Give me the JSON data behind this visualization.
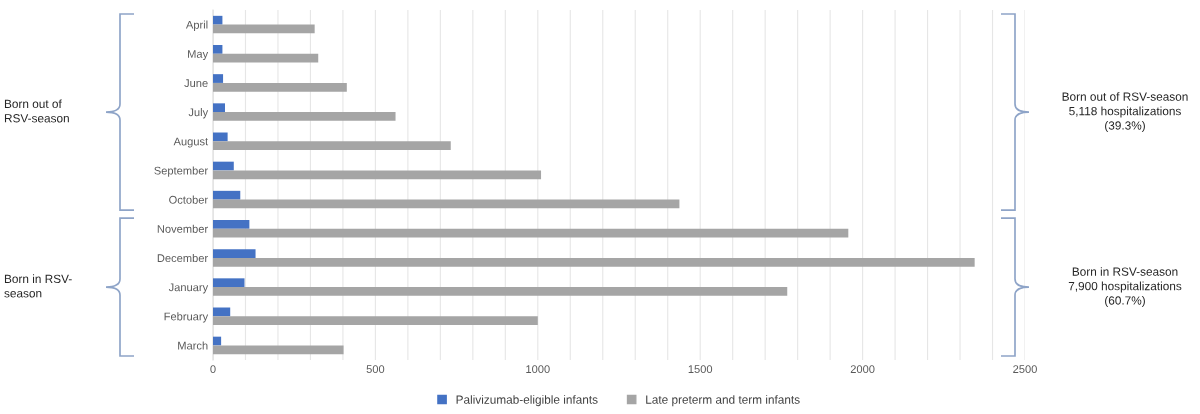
{
  "chart_data": {
    "type": "bar",
    "orientation": "horizontal",
    "categories": [
      "April",
      "May",
      "June",
      "July",
      "August",
      "September",
      "October",
      "November",
      "December",
      "January",
      "February",
      "March"
    ],
    "series": [
      {
        "name": "Palivizumab-eligible infants",
        "color": "#4472c4",
        "values": [
          29,
          29,
          31,
          37,
          45,
          64,
          84,
          112,
          131,
          97,
          53,
          25
        ]
      },
      {
        "name": "Late preterm and term infants",
        "color": "#a5a5a5",
        "values": [
          313,
          324,
          412,
          562,
          732,
          1010,
          1436,
          1956,
          2345,
          1768,
          1000,
          402
        ]
      }
    ],
    "xlim": [
      0,
      2500
    ],
    "xticks": [
      0,
      {
        "value": 100,
        "label": null
      },
      {
        "value": 200,
        "label": null
      },
      {
        "value": 300,
        "label": null
      },
      {
        "value": 400,
        "label": null
      },
      500,
      {
        "value": 600,
        "label": null
      },
      {
        "value": 700,
        "label": null
      },
      {
        "value": 800,
        "label": null
      },
      {
        "value": 900,
        "label": null
      },
      1000,
      {
        "value": 1100,
        "label": null
      },
      {
        "value": 1200,
        "label": null
      },
      {
        "value": 1300,
        "label": null
      },
      {
        "value": 1400,
        "label": null
      },
      1500,
      {
        "value": 1600,
        "label": null
      },
      {
        "value": 1700,
        "label": null
      },
      {
        "value": 1800,
        "label": null
      },
      {
        "value": 1900,
        "label": null
      },
      2000,
      {
        "value": 2100,
        "label": null
      },
      {
        "value": 2200,
        "label": null
      },
      {
        "value": 2300,
        "label": null
      },
      {
        "value": 2400,
        "label": null
      },
      2500
    ],
    "grid": "x",
    "legend": "bottom",
    "annotations": [
      "Born out of\nRSV-season",
      "Born in RSV-\nseason",
      "Born out of RSV-season\n5,118 hospitalizations\n(39.3%)",
      "Born in RSV-season\n7,900 hospitalizations\n(60.7%)"
    ]
  }
}
